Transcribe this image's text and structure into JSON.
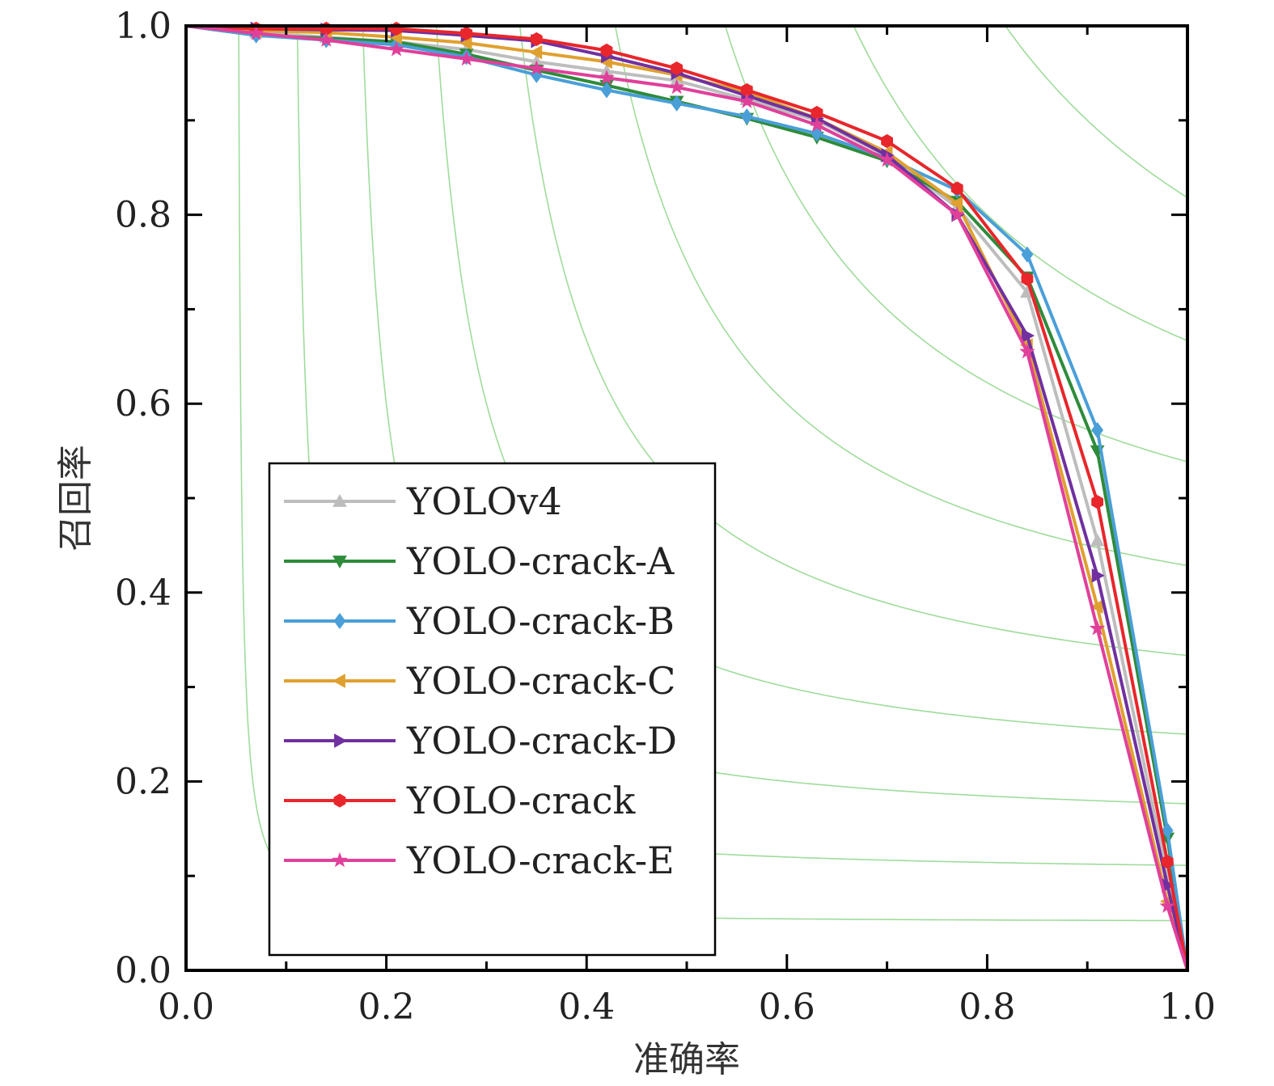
{
  "chart_data": {
    "type": "line",
    "xlabel": "准确率",
    "ylabel": "召回率",
    "xlim": [
      0,
      1
    ],
    "ylim": [
      0,
      1
    ],
    "x_ticks": [
      "0.0",
      "0.2",
      "0.4",
      "0.6",
      "0.8",
      "1.0"
    ],
    "y_ticks": [
      "0.0",
      "0.2",
      "0.4",
      "0.6",
      "0.8",
      "1.0"
    ],
    "grid": false,
    "background_curves": "iso-F1 contours",
    "background_curve_color": "#9fdc9a",
    "iso_f1_levels": [
      0.1,
      0.2,
      0.3,
      0.4,
      0.5,
      0.6,
      0.7,
      0.8,
      0.9
    ],
    "legend_position": "center-left",
    "series": [
      {
        "name": "YOLOv4",
        "color": "#bdbdbd",
        "marker": "triangle-up",
        "points": [
          [
            0,
            1
          ],
          [
            0.07,
            0.993
          ],
          [
            0.14,
            0.988
          ],
          [
            0.21,
            0.983
          ],
          [
            0.28,
            0.975
          ],
          [
            0.35,
            0.962
          ],
          [
            0.42,
            0.952
          ],
          [
            0.49,
            0.942
          ],
          [
            0.56,
            0.922
          ],
          [
            0.63,
            0.9
          ],
          [
            0.7,
            0.862
          ],
          [
            0.77,
            0.808
          ],
          [
            0.84,
            0.718
          ],
          [
            0.91,
            0.455
          ],
          [
            0.98,
            0.1
          ],
          [
            1,
            0
          ]
        ]
      },
      {
        "name": "YOLO-crack-A",
        "color": "#2e8b3a",
        "marker": "triangle-down",
        "points": [
          [
            0,
            1
          ],
          [
            0.07,
            0.99
          ],
          [
            0.14,
            0.987
          ],
          [
            0.21,
            0.983
          ],
          [
            0.28,
            0.97
          ],
          [
            0.35,
            0.953
          ],
          [
            0.42,
            0.937
          ],
          [
            0.49,
            0.92
          ],
          [
            0.56,
            0.902
          ],
          [
            0.63,
            0.882
          ],
          [
            0.7,
            0.857
          ],
          [
            0.77,
            0.814
          ],
          [
            0.84,
            0.734
          ],
          [
            0.91,
            0.55
          ],
          [
            0.98,
            0.14
          ],
          [
            1,
            0
          ]
        ]
      },
      {
        "name": "YOLO-crack-B",
        "color": "#4a9fd8",
        "marker": "diamond",
        "points": [
          [
            0,
            1
          ],
          [
            0.07,
            0.99
          ],
          [
            0.14,
            0.985
          ],
          [
            0.21,
            0.98
          ],
          [
            0.28,
            0.967
          ],
          [
            0.35,
            0.948
          ],
          [
            0.42,
            0.932
          ],
          [
            0.49,
            0.918
          ],
          [
            0.56,
            0.904
          ],
          [
            0.63,
            0.886
          ],
          [
            0.7,
            0.86
          ],
          [
            0.77,
            0.826
          ],
          [
            0.84,
            0.758
          ],
          [
            0.91,
            0.572
          ],
          [
            0.98,
            0.148
          ],
          [
            1,
            0
          ]
        ]
      },
      {
        "name": "YOLO-crack-C",
        "color": "#e0a030",
        "marker": "triangle-left",
        "points": [
          [
            0,
            1
          ],
          [
            0.07,
            0.995
          ],
          [
            0.14,
            0.993
          ],
          [
            0.21,
            0.988
          ],
          [
            0.28,
            0.982
          ],
          [
            0.35,
            0.972
          ],
          [
            0.42,
            0.962
          ],
          [
            0.49,
            0.948
          ],
          [
            0.56,
            0.93
          ],
          [
            0.63,
            0.902
          ],
          [
            0.7,
            0.866
          ],
          [
            0.77,
            0.812
          ],
          [
            0.84,
            0.662
          ],
          [
            0.91,
            0.385
          ],
          [
            0.98,
            0.073
          ],
          [
            1,
            0
          ]
        ]
      },
      {
        "name": "YOLO-crack-D",
        "color": "#7030a0",
        "marker": "triangle-right",
        "points": [
          [
            0,
            1
          ],
          [
            0.07,
            0.997
          ],
          [
            0.14,
            0.996
          ],
          [
            0.21,
            0.995
          ],
          [
            0.28,
            0.99
          ],
          [
            0.35,
            0.984
          ],
          [
            0.42,
            0.968
          ],
          [
            0.49,
            0.95
          ],
          [
            0.56,
            0.926
          ],
          [
            0.63,
            0.902
          ],
          [
            0.7,
            0.863
          ],
          [
            0.77,
            0.8
          ],
          [
            0.84,
            0.672
          ],
          [
            0.91,
            0.418
          ],
          [
            0.98,
            0.09
          ],
          [
            1,
            0
          ]
        ]
      },
      {
        "name": "YOLO-crack",
        "color": "#e8262b",
        "marker": "hexagon",
        "points": [
          [
            0,
            1
          ],
          [
            0.07,
            0.997
          ],
          [
            0.14,
            0.997
          ],
          [
            0.21,
            0.997
          ],
          [
            0.28,
            0.992
          ],
          [
            0.35,
            0.986
          ],
          [
            0.42,
            0.974
          ],
          [
            0.49,
            0.955
          ],
          [
            0.56,
            0.932
          ],
          [
            0.63,
            0.908
          ],
          [
            0.7,
            0.878
          ],
          [
            0.77,
            0.828
          ],
          [
            0.84,
            0.732
          ],
          [
            0.91,
            0.496
          ],
          [
            0.98,
            0.115
          ],
          [
            1,
            0
          ]
        ]
      },
      {
        "name": "YOLO-crack-E",
        "color": "#e0409a",
        "marker": "star",
        "points": [
          [
            0,
            1
          ],
          [
            0.07,
            0.992
          ],
          [
            0.14,
            0.985
          ],
          [
            0.21,
            0.975
          ],
          [
            0.28,
            0.965
          ],
          [
            0.35,
            0.955
          ],
          [
            0.42,
            0.945
          ],
          [
            0.49,
            0.935
          ],
          [
            0.56,
            0.92
          ],
          [
            0.63,
            0.895
          ],
          [
            0.7,
            0.858
          ],
          [
            0.77,
            0.8
          ],
          [
            0.84,
            0.655
          ],
          [
            0.91,
            0.362
          ],
          [
            0.98,
            0.068
          ],
          [
            1,
            0
          ]
        ]
      }
    ]
  }
}
